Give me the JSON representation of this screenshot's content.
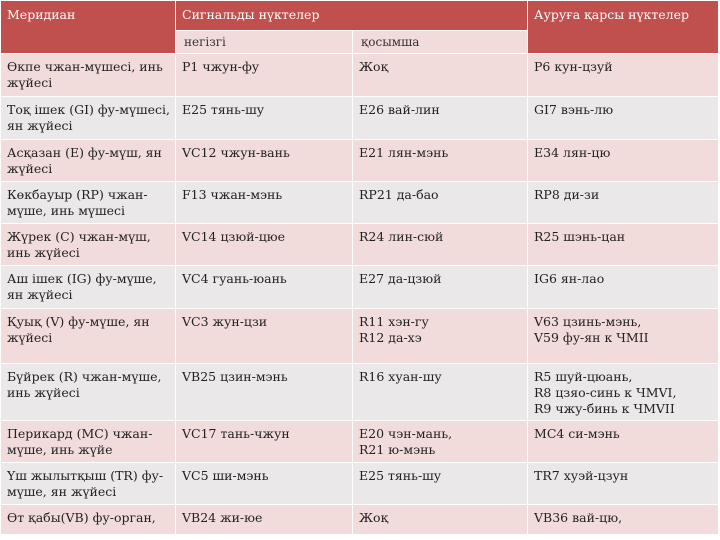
{
  "header": {
    "meridian": "Меридиан",
    "signal_points": "Сигнальды нүктелер",
    "pain_points": "Ауруға қарсы нүктелер",
    "main": "негізгі",
    "additional": "қосымша"
  },
  "rows": [
    {
      "meridian": "Өкпе чжан-мүшесі, инь жүйесі",
      "main": "P1 чжун-фу",
      "additional": "Жоқ",
      "pain": [
        "P6 кун-цзуй"
      ]
    },
    {
      "meridian": "Тоқ ішек (GI) фу-мүшесі, ян жүйесі",
      "main": "E25 тянь-шу",
      "additional": "E26 вай-лин",
      "pain": [
        "GI7 вэнь-лю"
      ]
    },
    {
      "meridian": "Асқазан (E) фу-мүш, ян жүйесі",
      "main": "VC12 чжун-вань",
      "additional": "E21 лян-мэнь",
      "pain": [
        "E34 лян-цю"
      ]
    },
    {
      "meridian": "Көкбауыр (RP) чжан-мүше, инь мүшесі",
      "main": "F13 чжан-мэнь",
      "additional": "RP21 да-бао",
      "pain": [
        "RP8 ди-зи"
      ]
    },
    {
      "meridian": "Жүрек (C) чжан-мүш, инь жүйесі",
      "main": "VC14 цзюй-цюе",
      "additional": "R24 лин-сюй",
      "pain": [
        "R25 шэнь-цан"
      ]
    },
    {
      "meridian": "Аш ішек (IG) фу-мүше, ян жүйесі",
      "main": "VC4 гуань-юань",
      "additional": "E27 да-цзюй",
      "pain": [
        "IG6 ян-лао"
      ]
    },
    {
      "meridian": "Қуық (V) фу-мүше, ян жүйесі",
      "main": "VC3 жун-цзи",
      "additional": "R11 хэн-гу\nR12 да-хэ",
      "pain": [
        "V63 цзинь-мэнь,",
        "V59 фу-ян к ЧМII"
      ]
    },
    {
      "meridian": "Бүйрек (R) чжан-мүше, инь жүйесі",
      "main": "VB25 цзин-мэнь",
      "additional": "R16 хуан-шу",
      "pain": [
        "R5 шуй-цюань,",
        "R8 цзяо-синь к ЧМVI,",
        "R9 чжу-бинь к ЧМVII"
      ]
    },
    {
      "meridian": "Перикард (MC) чжан-мүше, инь жүйе",
      "main": "VC17 тань-чжун",
      "additional": "E20 чэн-мань,\nR21 ю-мэнь",
      "pain": [
        "MC4 си-мэнь"
      ]
    },
    {
      "meridian": "Үш жылытқыш (TR) фу-мүше, ян жүйесі",
      "main": "VC5 ши-мэнь",
      "additional": "E25 тянь-шу",
      "pain": [
        "TR7 хуэй-цзун"
      ]
    },
    {
      "meridian": "Өт қабы(VB) фу-орган,",
      "main": "VB24 жи-юе",
      "additional": "Жоқ",
      "pain": [
        "VB36 вай-цю,"
      ]
    }
  ]
}
